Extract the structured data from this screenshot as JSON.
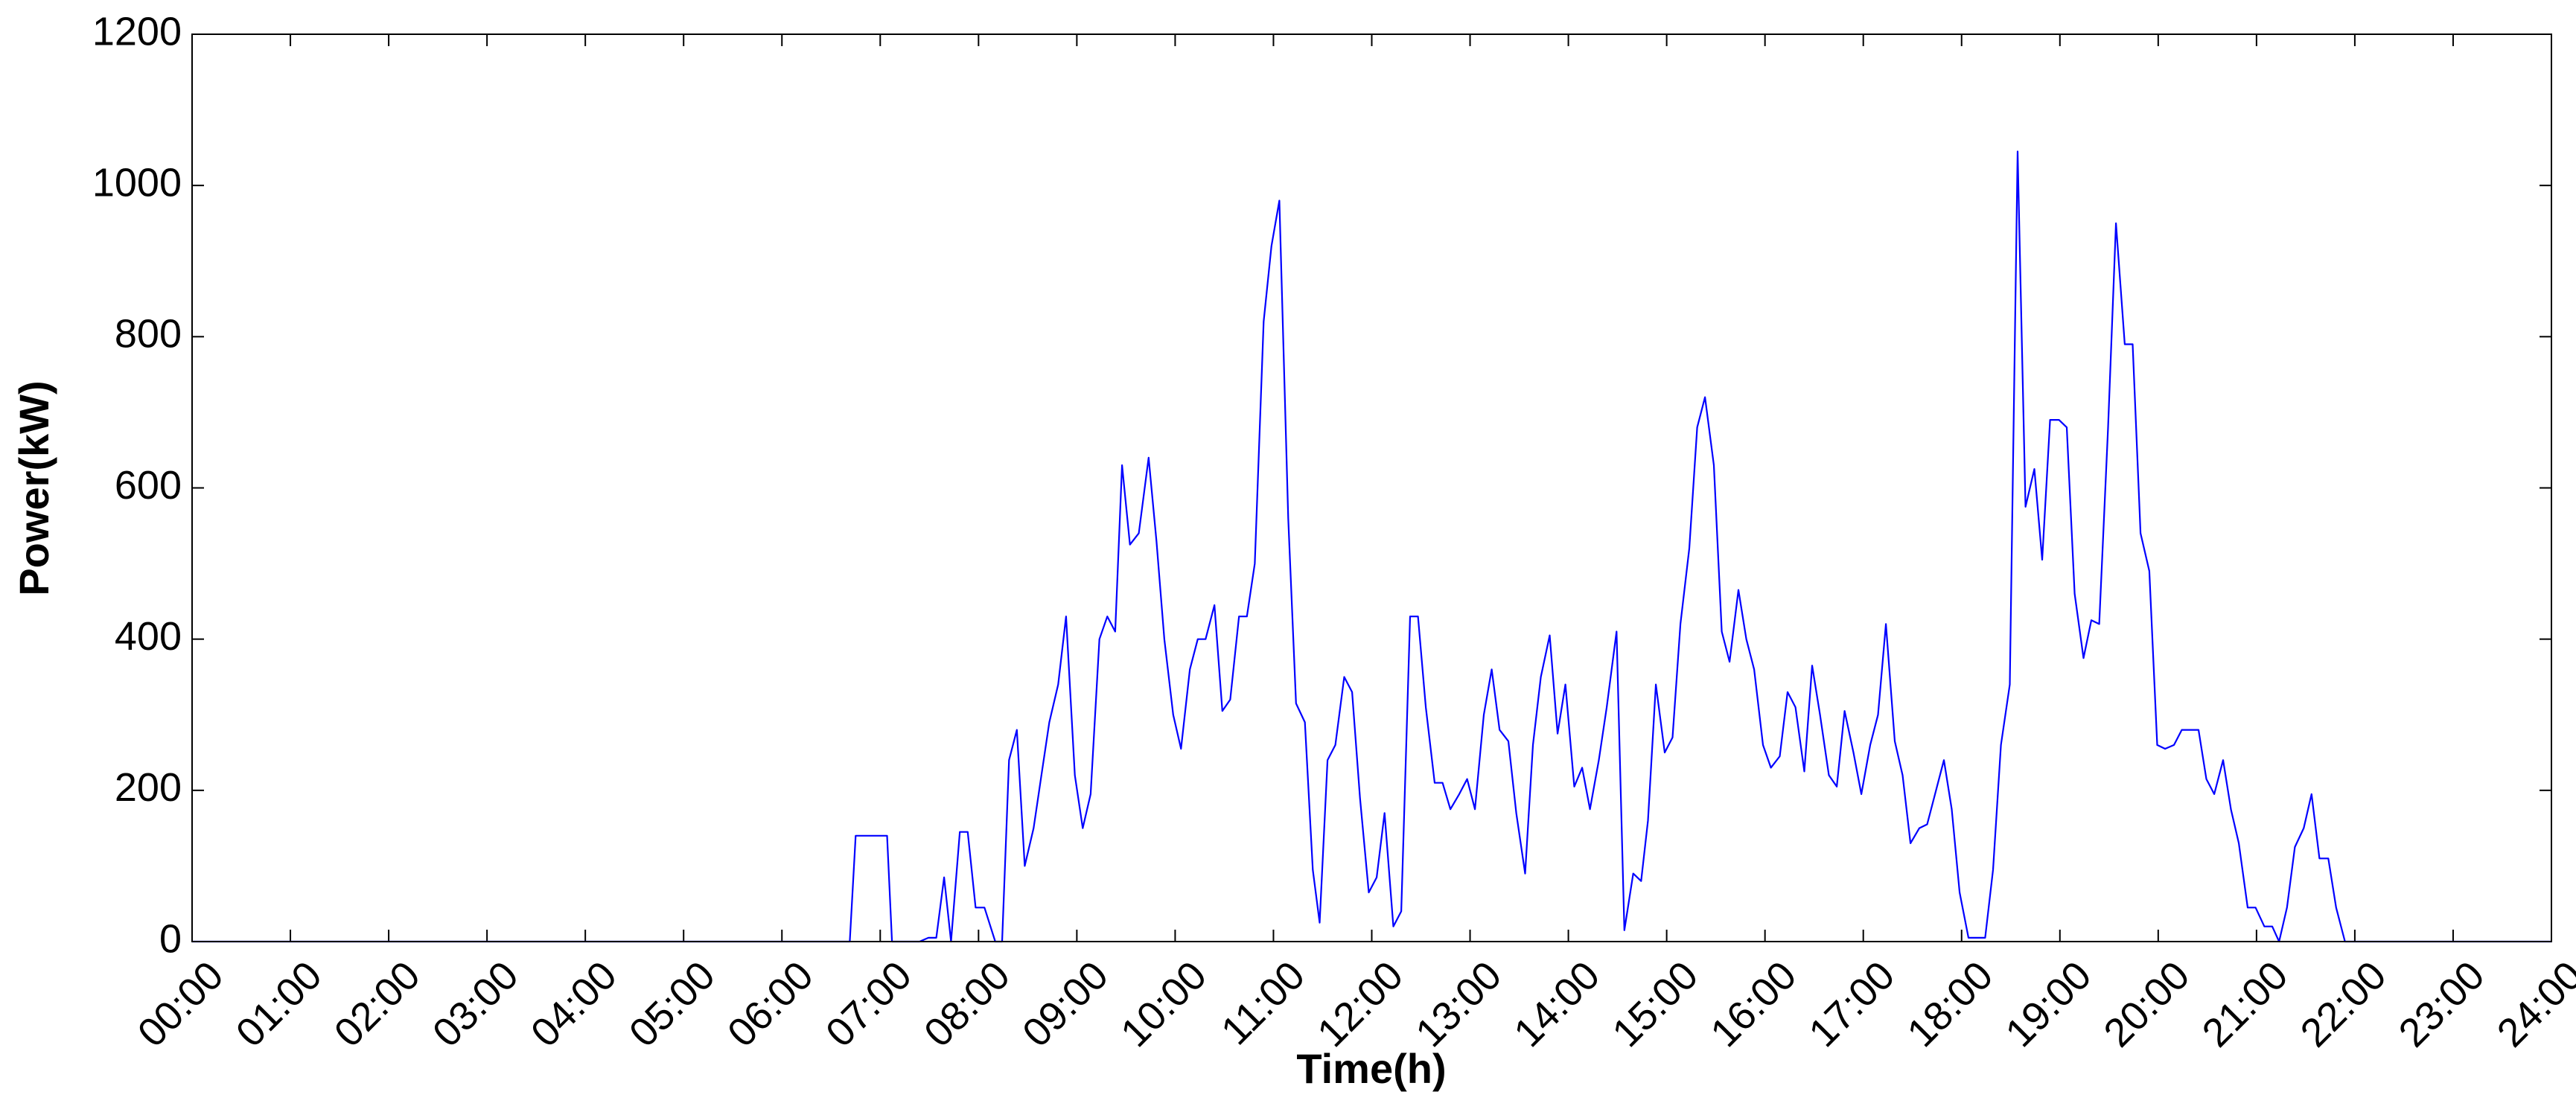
{
  "chart_data": {
    "type": "line",
    "xlabel": "Time(h)",
    "ylabel": "Power(kW)",
    "color": "#0000ff",
    "x": [
      0,
      6.69,
      6.75,
      7.07,
      7.12,
      7.4,
      7.49,
      7.57,
      7.65,
      7.72,
      7.81,
      7.89,
      7.97,
      8.06,
      8.17,
      8.24,
      8.31,
      8.39,
      8.47,
      8.56,
      8.64,
      8.72,
      8.81,
      8.89,
      8.98,
      9.06,
      9.14,
      9.23,
      9.31,
      9.39,
      9.46,
      9.54,
      9.63,
      9.73,
      9.81,
      9.89,
      9.98,
      10.06,
      10.15,
      10.23,
      10.31,
      10.4,
      10.48,
      10.56,
      10.65,
      10.73,
      10.81,
      10.9,
      10.98,
      11.06,
      11.15,
      11.23,
      11.32,
      11.4,
      11.47,
      11.55,
      11.63,
      11.72,
      11.8,
      11.88,
      11.97,
      12.05,
      12.13,
      12.22,
      12.3,
      12.39,
      12.47,
      12.55,
      12.64,
      12.72,
      12.8,
      12.89,
      12.97,
      13.05,
      13.14,
      13.22,
      13.3,
      13.39,
      13.47,
      13.56,
      13.64,
      13.72,
      13.81,
      13.89,
      13.97,
      14.06,
      14.14,
      14.22,
      14.31,
      14.39,
      14.49,
      14.57,
      14.66,
      14.74,
      14.81,
      14.89,
      14.98,
      15.06,
      15.14,
      15.23,
      15.31,
      15.39,
      15.48,
      15.56,
      15.64,
      15.73,
      15.81,
      15.89,
      15.98,
      16.06,
      16.15,
      16.23,
      16.31,
      16.4,
      16.48,
      16.56,
      16.65,
      16.73,
      16.81,
      16.9,
      16.98,
      17.07,
      17.15,
      17.23,
      17.32,
      17.4,
      17.48,
      17.57,
      17.65,
      17.73,
      17.82,
      17.9,
      17.98,
      18.07,
      18.15,
      18.24,
      18.32,
      18.4,
      18.49,
      18.57,
      18.65,
      18.74,
      18.82,
      18.9,
      18.99,
      19.07,
      19.15,
      19.24,
      19.32,
      19.4,
      19.49,
      19.57,
      19.66,
      19.74,
      19.82,
      19.91,
      19.99,
      20.07,
      20.16,
      20.24,
      20.32,
      20.41,
      20.49,
      20.57,
      20.66,
      20.74,
      20.82,
      20.91,
      20.99,
      21.08,
      21.16,
      21.23,
      21.31,
      21.39,
      21.48,
      21.56,
      21.64,
      21.73,
      21.81,
      21.9,
      24
    ],
    "values": [
      0,
      0,
      140,
      140,
      0,
      0,
      5,
      5,
      85,
      0,
      145,
      145,
      45,
      45,
      0,
      0,
      240,
      280,
      100,
      150,
      220,
      290,
      340,
      430,
      220,
      150,
      195,
      400,
      430,
      410,
      630,
      525,
      540,
      640,
      530,
      400,
      300,
      255,
      360,
      400,
      400,
      445,
      305,
      320,
      430,
      430,
      500,
      820,
      920,
      980,
      560,
      315,
      290,
      95,
      25,
      240,
      260,
      350,
      330,
      190,
      65,
      85,
      170,
      20,
      40,
      430,
      430,
      310,
      210,
      210,
      175,
      195,
      215,
      175,
      300,
      360,
      280,
      265,
      170,
      90,
      260,
      350,
      405,
      275,
      340,
      205,
      230,
      175,
      240,
      310,
      410,
      15,
      90,
      80,
      160,
      340,
      250,
      270,
      420,
      520,
      680,
      720,
      630,
      410,
      370,
      465,
      400,
      360,
      260,
      230,
      245,
      330,
      310,
      225,
      365,
      300,
      220,
      205,
      305,
      250,
      195,
      260,
      300,
      420,
      265,
      220,
      130,
      150,
      155,
      195,
      240,
      175,
      65,
      5,
      5,
      5,
      95,
      260,
      340,
      1045,
      575,
      625,
      505,
      690,
      690,
      680,
      460,
      375,
      425,
      420,
      680,
      950,
      790,
      790,
      540,
      490,
      260,
      255,
      260,
      280,
      280,
      280,
      215,
      195,
      240,
      175,
      130,
      45,
      45,
      20,
      20,
      0,
      45,
      125,
      150,
      195,
      110,
      110,
      45,
      0,
      0
    ],
    "xlim": [
      0,
      24
    ],
    "xticks": [
      {
        "value": 0,
        "label": "00:00"
      },
      {
        "value": 1,
        "label": "01:00"
      },
      {
        "value": 2,
        "label": "02:00"
      },
      {
        "value": 3,
        "label": "03:00"
      },
      {
        "value": 4,
        "label": "04:00"
      },
      {
        "value": 5,
        "label": "05:00"
      },
      {
        "value": 6,
        "label": "06:00"
      },
      {
        "value": 7,
        "label": "07:00"
      },
      {
        "value": 8,
        "label": "08:00"
      },
      {
        "value": 9,
        "label": "09:00"
      },
      {
        "value": 10,
        "label": "10:00"
      },
      {
        "value": 11,
        "label": "11:00"
      },
      {
        "value": 12,
        "label": "12:00"
      },
      {
        "value": 13,
        "label": "13:00"
      },
      {
        "value": 14,
        "label": "14:00"
      },
      {
        "value": 15,
        "label": "15:00"
      },
      {
        "value": 16,
        "label": "16:00"
      },
      {
        "value": 17,
        "label": "17:00"
      },
      {
        "value": 18,
        "label": "18:00"
      },
      {
        "value": 19,
        "label": "19:00"
      },
      {
        "value": 20,
        "label": "20:00"
      },
      {
        "value": 21,
        "label": "21:00"
      },
      {
        "value": 22,
        "label": "22:00"
      },
      {
        "value": 23,
        "label": "23:00"
      },
      {
        "value": 24,
        "label": "24:00"
      }
    ],
    "ylim": [
      0,
      1200
    ],
    "yticks": [
      0,
      200,
      400,
      600,
      800,
      1000,
      1200
    ]
  }
}
